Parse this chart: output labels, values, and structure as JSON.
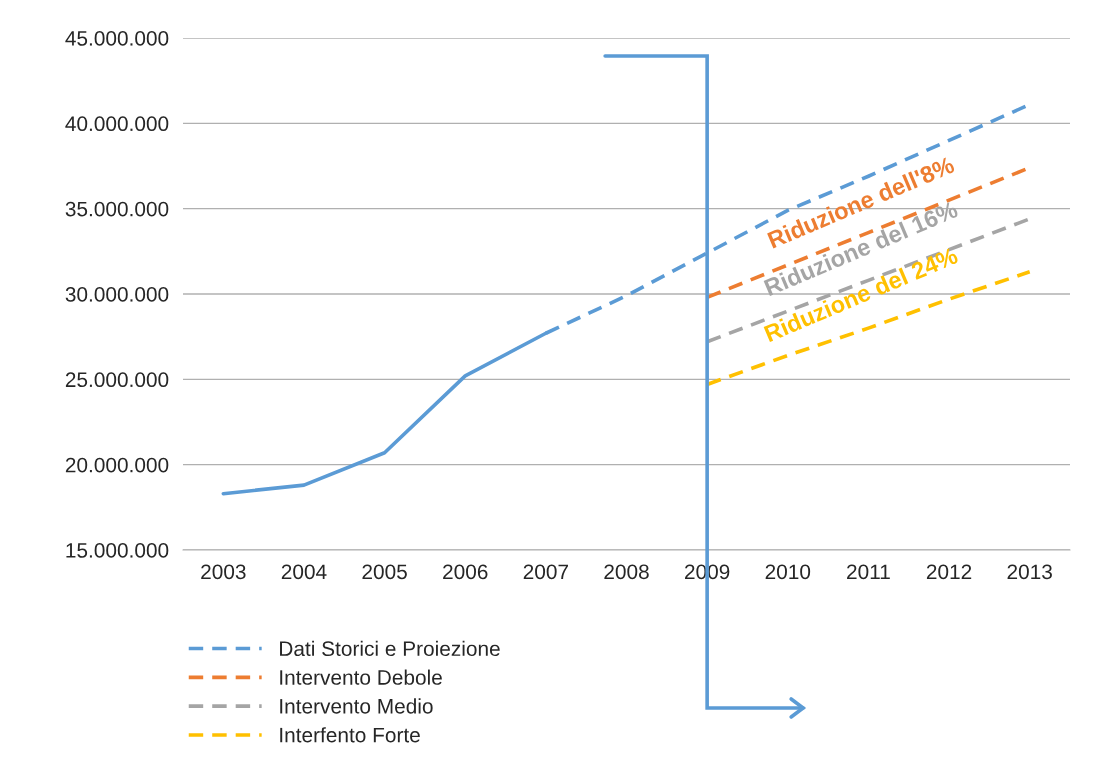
{
  "chart_data": {
    "type": "line",
    "categories": [
      "2003",
      "2004",
      "2005",
      "2006",
      "2007",
      "2008",
      "2009",
      "2010",
      "2011",
      "2012",
      "2013"
    ],
    "series": [
      {
        "color": "#5b9bd5",
        "line_style": "solid",
        "values": [
          18300000,
          18800000,
          20700000,
          25200000,
          27700000,
          null,
          null,
          null,
          null,
          null,
          null
        ]
      },
      {
        "name": "Dati Storici e Proiezione",
        "color": "#5b9bd5",
        "line_style": "dashed",
        "values": [
          null,
          null,
          null,
          null,
          27700000,
          29900000,
          32400000,
          34900000,
          36900000,
          39000000,
          41100000
        ]
      },
      {
        "name": "Intervento Debole",
        "color": "#ed7d31",
        "line_style": "dashed",
        "values": [
          null,
          null,
          null,
          null,
          null,
          null,
          29800000,
          31700000,
          33600000,
          35500000,
          37400000
        ]
      },
      {
        "name": "Intervento Medio",
        "color": "#a5a5a5",
        "line_style": "dashed",
        "values": [
          null,
          null,
          null,
          null,
          null,
          null,
          27200000,
          29000000,
          30800000,
          32600000,
          34400000
        ]
      },
      {
        "name": "Interfento Forte",
        "color": "#ffc000",
        "line_style": "dashed",
        "values": [
          null,
          null,
          null,
          null,
          null,
          null,
          24700000,
          26400000,
          28000000,
          29700000,
          31300000
        ]
      }
    ],
    "ylim": [
      15000000,
      45000000
    ],
    "yticks": [
      {
        "value": 15000000,
        "label": "15.000.000"
      },
      {
        "value": 20000000,
        "label": "20.000.000"
      },
      {
        "value": 25000000,
        "label": "25.000.000"
      },
      {
        "value": 30000000,
        "label": "30.000.000"
      },
      {
        "value": 35000000,
        "label": "35.000.000"
      },
      {
        "value": 40000000,
        "label": "40.000.000"
      },
      {
        "value": 45000000,
        "label": "45.000.000"
      }
    ],
    "ref_lines": [
      {
        "axis": "x",
        "value": "2009",
        "color": "#5b9bd5",
        "line_style": "solid"
      }
    ],
    "grid": "y",
    "legend": "bottom left",
    "marker": "none",
    "annotations": [
      "Riduzione dell'8%",
      "Riduzione del 16%",
      "Riduzione del 24%"
    ]
  }
}
